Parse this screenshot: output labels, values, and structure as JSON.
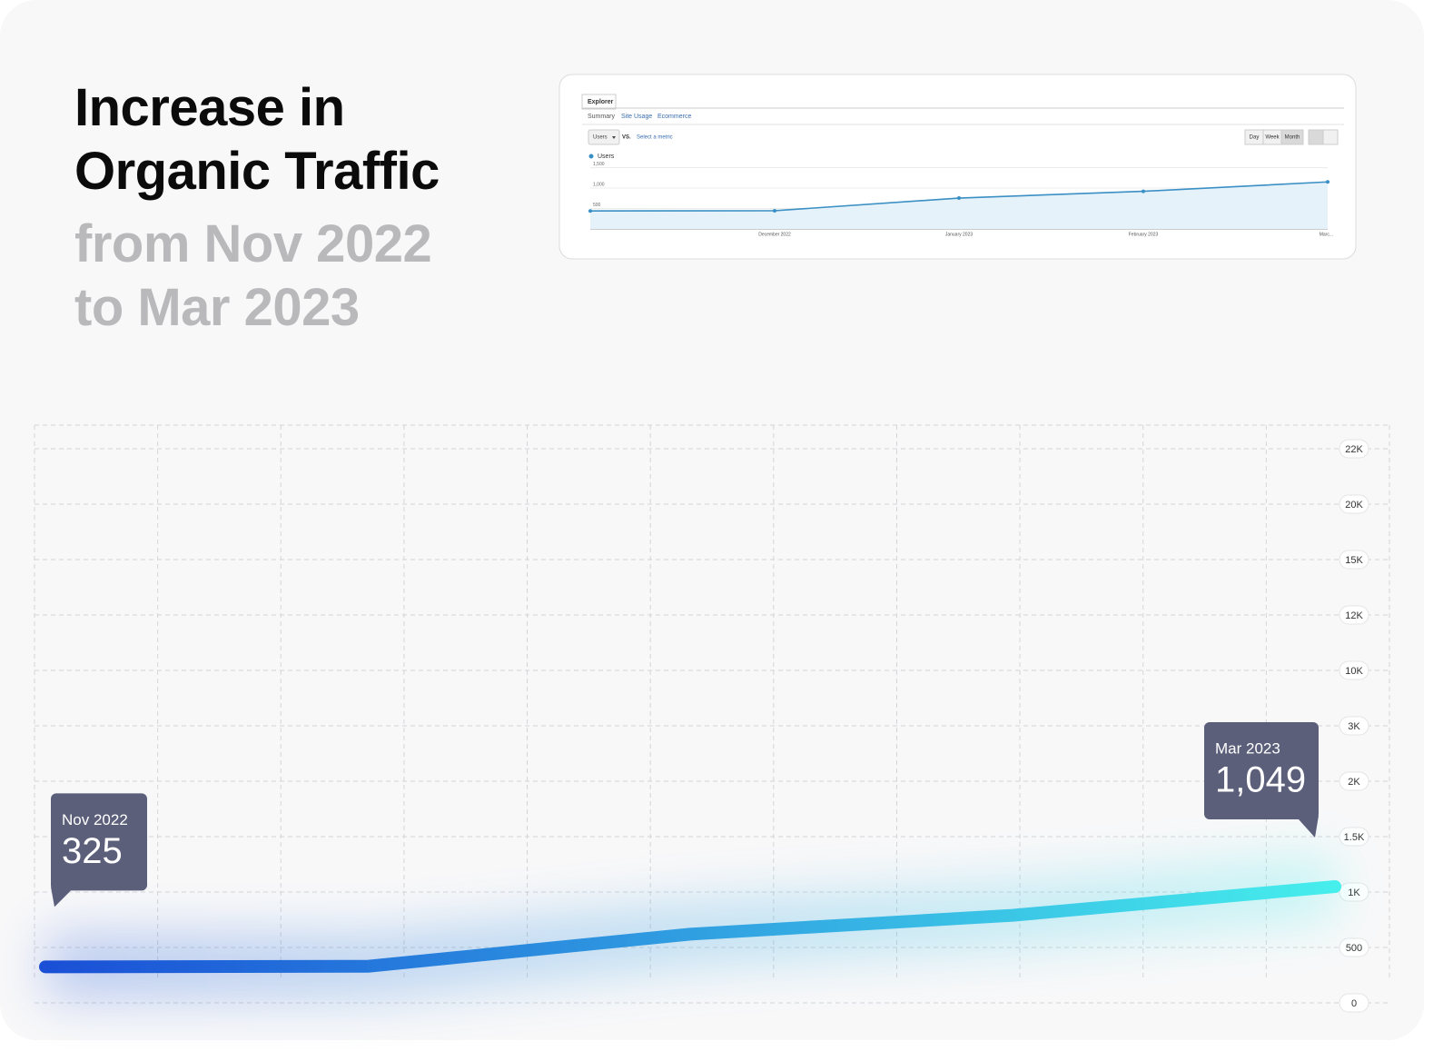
{
  "header": {
    "title": "Increase in Organic Traffic",
    "subtitle": "from Nov 2022 to Mar 2023"
  },
  "chart_data": [
    {
      "type": "line",
      "categories": [
        "Nov 2022",
        null,
        null,
        null,
        "Mar 2023"
      ],
      "values": [
        325,
        330,
        620,
        790,
        1049
      ],
      "value_labels": [
        "325",
        null,
        null,
        null,
        "1,049"
      ],
      "gradient": [
        "#1a4fd6",
        "#46eeec"
      ],
      "ylim": [
        0,
        22000
      ],
      "yticks": [
        0,
        500,
        {
          "value": 1000,
          "label": "1K"
        },
        {
          "value": 1500,
          "label": "1.5K"
        },
        {
          "value": 2000,
          "label": "2K"
        },
        {
          "value": 3000,
          "label": "3K"
        },
        {
          "value": 10000,
          "label": "10K"
        },
        {
          "value": 12000,
          "label": "12K"
        },
        {
          "value": 15000,
          "label": "15K"
        },
        {
          "value": 20000,
          "label": "20K"
        },
        {
          "value": 22000,
          "label": "22K"
        }
      ],
      "grid": true
    },
    {
      "type": "area",
      "toolbar": {
        "tab": "Explorer",
        "subtabs": [
          "Summary",
          "Site Usage",
          "Ecommerce"
        ],
        "metric": "Users",
        "vs": "VS.",
        "select": "Select a metric",
        "periods": [
          "Day",
          "Week",
          "Month"
        ]
      },
      "series": [
        {
          "name": "Users",
          "color": "#3a8fc4",
          "values": [
            440,
            445,
            755,
            920,
            1150
          ]
        }
      ],
      "categories": [
        null,
        "December 2022",
        "January 2023",
        "February 2023",
        "Marc..."
      ],
      "ylim": [
        0,
        1600
      ],
      "yticks": [
        500,
        {
          "value": 1000,
          "label": "1,000"
        },
        {
          "value": 1500,
          "label": "1,500"
        }
      ],
      "grid": true
    }
  ]
}
